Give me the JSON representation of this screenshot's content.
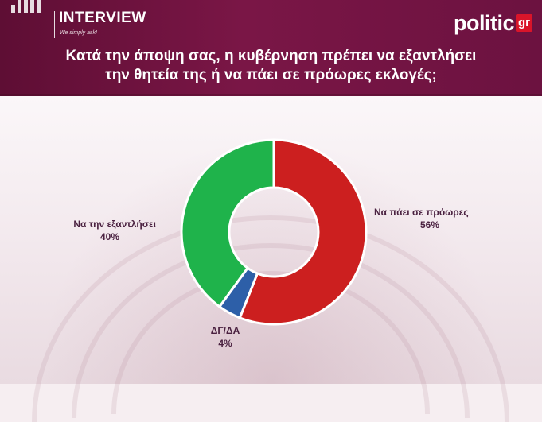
{
  "header": {
    "brand_left": "INTERVIEW",
    "brand_left_tagline": "We simply ask!",
    "brand_right": "politic",
    "brand_right_badge": "gr",
    "question_line1": "Κατά την άποψη σας, η κυβέρνηση πρέπει να εξαντλήσει",
    "question_line2": "την θητεία της ή να πάει σε πρόωρες εκλογές;",
    "colors": {
      "band": "#6c1240",
      "badge": "#d9152a"
    }
  },
  "chart_data": {
    "type": "pie",
    "donut": true,
    "title": "",
    "slices": [
      {
        "name": "Να πάει σε  πρόωρες",
        "value": 56,
        "label": "56%",
        "color": "#cc1f1f"
      },
      {
        "name": "ΔΓ/ΔΑ",
        "value": 4,
        "label": "4%",
        "color": "#2d5fa8"
      },
      {
        "name": "Να την εξαντλήσει",
        "value": 40,
        "label": "40%",
        "color": "#1fb34b"
      }
    ],
    "start_angle_deg": 0,
    "direction": "clockwise"
  }
}
